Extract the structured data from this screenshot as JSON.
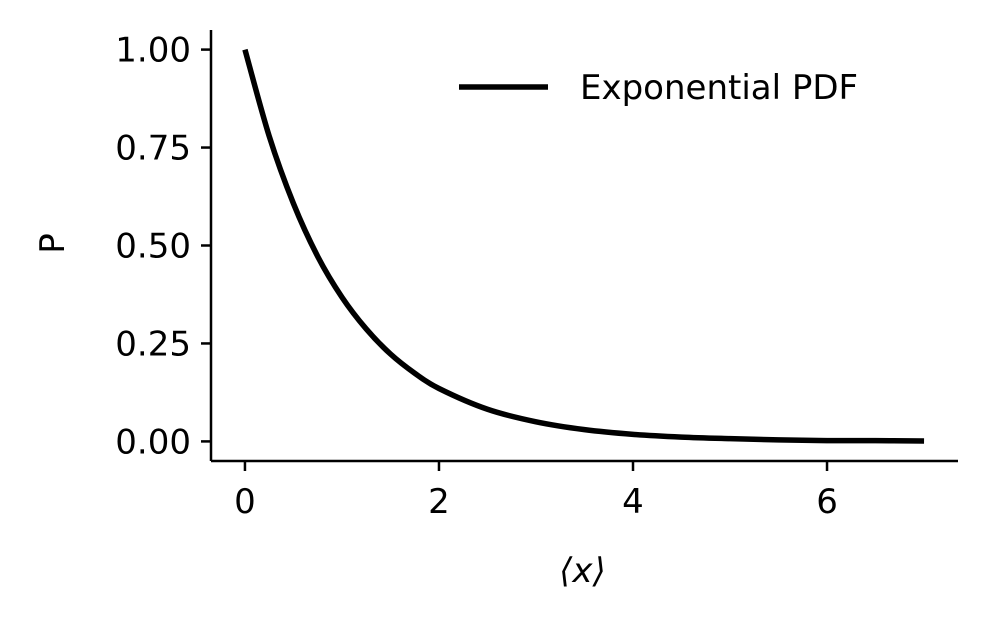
{
  "chart_data": {
    "type": "line",
    "title": "",
    "xlabel": "⟨x⟩",
    "ylabel": "P",
    "xlim": [
      -0.35,
      7.35
    ],
    "ylim": [
      -0.05,
      1.05
    ],
    "xticks": [
      0,
      2,
      4,
      6
    ],
    "xtick_labels": [
      "0",
      "2",
      "4",
      "6"
    ],
    "yticks": [
      0.0,
      0.25,
      0.5,
      0.75,
      1.0
    ],
    "ytick_labels": [
      "0.00",
      "0.25",
      "0.50",
      "0.75",
      "1.00"
    ],
    "grid": false,
    "legend": {
      "position": "top-right",
      "entries": [
        "Exponential PDF"
      ]
    },
    "series": [
      {
        "name": "Exponential PDF",
        "color": "#000000",
        "x": [
          0,
          0.25,
          0.5,
          0.75,
          1,
          1.25,
          1.5,
          1.75,
          2,
          2.5,
          3,
          3.5,
          4,
          4.5,
          5,
          5.5,
          6,
          6.5,
          7
        ],
        "y": [
          1.0,
          0.779,
          0.607,
          0.472,
          0.368,
          0.287,
          0.223,
          0.174,
          0.135,
          0.082,
          0.05,
          0.03,
          0.018,
          0.011,
          0.007,
          0.004,
          0.002,
          0.002,
          0.001
        ]
      }
    ]
  }
}
